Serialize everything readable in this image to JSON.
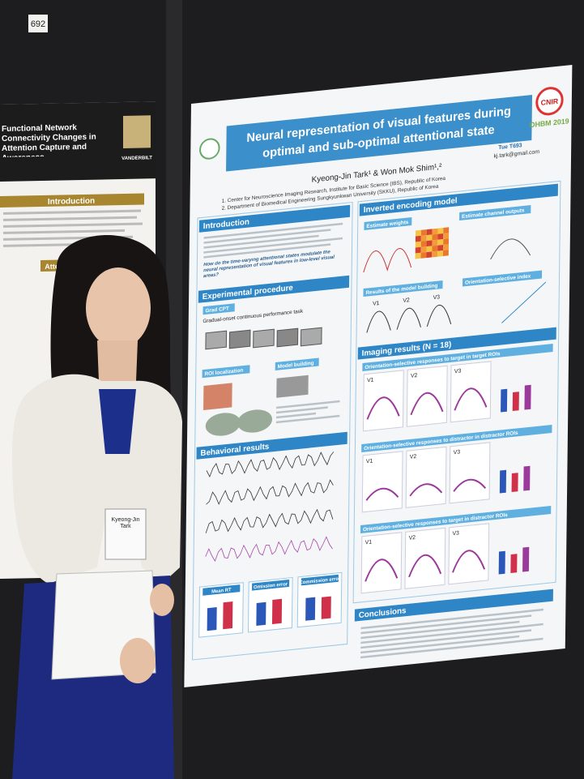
{
  "booth_number": "692",
  "left_poster": {
    "title": "Functional Network Connectivity Changes in Attention Capture and Awareness",
    "logo": "VANDERBILT",
    "sections": [
      "Introduction",
      "Attention"
    ]
  },
  "right_poster": {
    "title_line1": "Neural representation of visual features during",
    "title_line2": "optimal and sub-optimal attentional state",
    "authors": "Kyeong-Jin Tark¹ & Won Mok Shim¹,²",
    "affiliations": [
      "1. Center for Neuroscience Imaging Research, Institute for Basic Science (IBS), Republic of Korea",
      "2. Department of Biomedical Engineering Sungkyunkwan University (SKKU), Republic of Korea"
    ],
    "email": "kj.tark@gmail.com",
    "poster_id": "Tue T693",
    "lab": "CNIR",
    "conference": "OHBM 2019",
    "sections": {
      "introduction": "Introduction",
      "question": "How do the time-varying attentional states modulate the neural representation of visual features in low-level visual areas?",
      "experimental": "Experimental procedure",
      "grad_cpt": "Grad CPT",
      "grad_cpt_desc": "Gradual-onset continuous performance task",
      "roi": "ROI localization",
      "model_building": "Model building",
      "behavioral": "Behavioral results",
      "encoding": "Inverted encoding model",
      "estimate_weights": "Estimate weights",
      "estimate_outputs": "Estimate channel outputs",
      "model_results": "Results of the model building",
      "osi": "Orientation-selective index",
      "imaging": "Imaging results (N = 18)",
      "target_target": "Orientation-selective responses to target in target ROIs",
      "distractor_distractor": "Orientation-selective responses to distractor in distractor ROIs",
      "target_distractor": "Orientation-selective responses to target in distractor ROIs",
      "conclusions": "Conclusions"
    },
    "bar_labels": [
      "Mean RT",
      "Omission error",
      "Commission error"
    ],
    "roi_labels": [
      "V1",
      "V2",
      "V3"
    ]
  },
  "badge": {
    "name": "Kyeong-Jin Tark"
  }
}
